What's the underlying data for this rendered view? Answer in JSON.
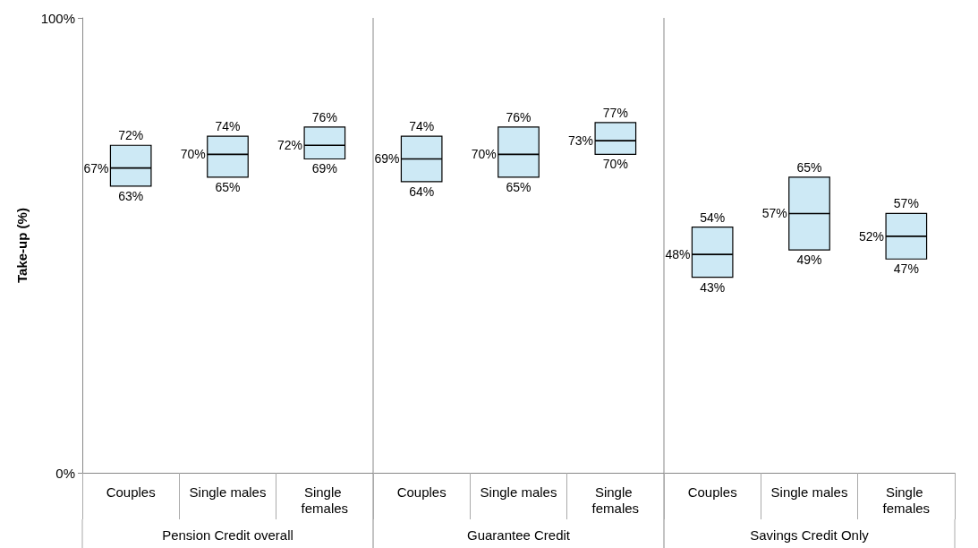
{
  "chart_data": {
    "type": "box",
    "ylabel": "Take-up (%)",
    "categories": [
      "Couples",
      "Single males",
      "Single females",
      "Couples",
      "Single males",
      "Single females",
      "Couples",
      "Single males",
      "Single females"
    ],
    "annotations": [
      "Pension Credit overall",
      "Guarantee Credit",
      "Savings Credit Only"
    ],
    "boxes": [
      {
        "low": 63,
        "q1": 63,
        "median": 67,
        "q3": 72,
        "high": 72
      },
      {
        "low": 65,
        "q1": 65,
        "median": 70,
        "q3": 74,
        "high": 74
      },
      {
        "low": 69,
        "q1": 69,
        "median": 72,
        "q3": 76,
        "high": 76
      },
      {
        "low": 64,
        "q1": 64,
        "median": 69,
        "q3": 74,
        "high": 74
      },
      {
        "low": 65,
        "q1": 65,
        "median": 70,
        "q3": 76,
        "high": 76
      },
      {
        "low": 70,
        "q1": 70,
        "median": 73,
        "q3": 77,
        "high": 77
      },
      {
        "low": 43,
        "q1": 43,
        "median": 48,
        "q3": 54,
        "high": 54
      },
      {
        "low": 49,
        "q1": 49,
        "median": 57,
        "q3": 65,
        "high": 65
      },
      {
        "low": 47,
        "q1": 47,
        "median": 52,
        "q3": 57,
        "high": 57
      }
    ],
    "color": "#cde9f5",
    "ylim": [
      0,
      100
    ],
    "yticks": [
      {
        "value": 0,
        "label": "0%"
      },
      {
        "value": 100,
        "label": "100%"
      }
    ],
    "value_labels": [
      [
        "72%",
        "67%",
        "63%"
      ],
      [
        "74%",
        "70%",
        "65%"
      ],
      [
        "76%",
        "72%",
        "69%"
      ],
      [
        "74%",
        "69%",
        "64%"
      ],
      [
        "76%",
        "70%",
        "65%"
      ],
      [
        "77%",
        "73%",
        "70%"
      ],
      [
        "54%",
        "48%",
        "43%"
      ],
      [
        "65%",
        "57%",
        "49%"
      ],
      [
        "57%",
        "52%",
        "47%"
      ]
    ],
    "grid": false
  }
}
